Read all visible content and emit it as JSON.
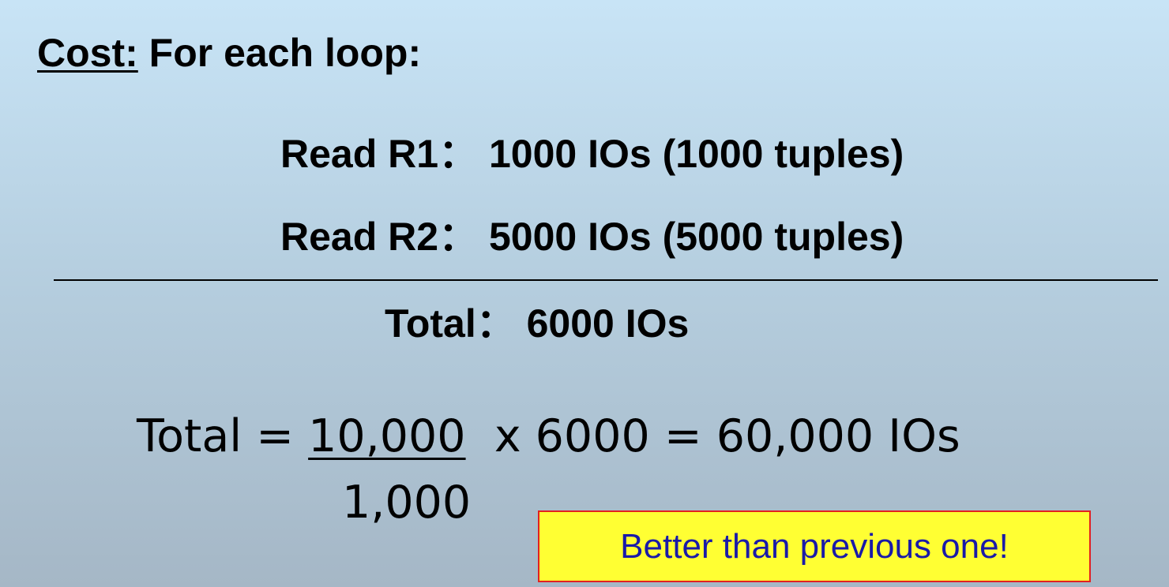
{
  "cost_header": {
    "label": "Cost:",
    "text": " For each loop:"
  },
  "read_r1": {
    "label": "Read R1",
    "separator": "：",
    "value": " 1000 IOs (1000 tuples)"
  },
  "read_r2": {
    "label": "Read R2",
    "separator": "：",
    "value": " 5000 IOs (5000 tuples)"
  },
  "total_line": {
    "label": "Total",
    "separator": "：",
    "value": " 6000 IOs"
  },
  "formula": {
    "prefix": "Total = ",
    "numerator": "10,000",
    "suffix": "  x 6000 = 60,000 IOs",
    "denominator": "1,000"
  },
  "callout": {
    "text": "Better than previous one!",
    "background": "#ffff33",
    "border": "#e22020",
    "text_color": "#1a1aa8"
  }
}
